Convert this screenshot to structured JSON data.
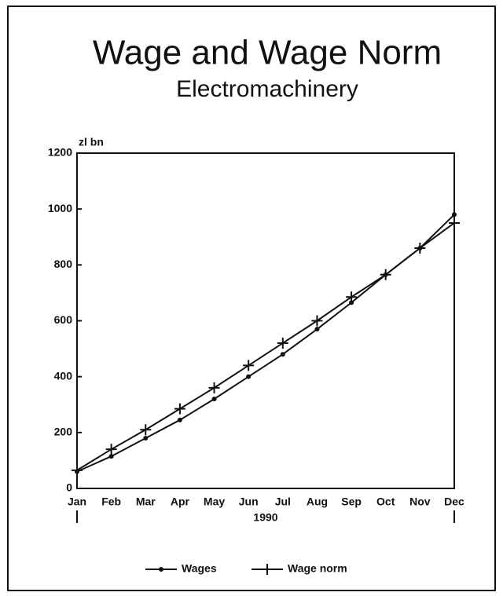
{
  "chart_data": {
    "type": "line",
    "title": "Wage and Wage Norm",
    "subtitle": "Electromachinery",
    "y_label": "zl bn",
    "x_label": "1990",
    "categories": [
      "Jan",
      "Feb",
      "Mar",
      "Apr",
      "May",
      "Jun",
      "Jul",
      "Aug",
      "Sep",
      "Oct",
      "Nov",
      "Dec"
    ],
    "series": [
      {
        "name": "Wages",
        "color": "#111111",
        "marker": "dot",
        "values": [
          60,
          115,
          180,
          245,
          320,
          400,
          480,
          570,
          665,
          765,
          860,
          980
        ]
      },
      {
        "name": "Wage norm",
        "color": "#111111",
        "marker": "plus",
        "values": [
          65,
          140,
          210,
          285,
          360,
          440,
          520,
          600,
          685,
          765,
          860,
          950
        ]
      }
    ],
    "ylim": [
      0,
      1200
    ],
    "yticks": [
      0,
      200,
      400,
      600,
      800,
      1000,
      1200
    ],
    "grid": false
  }
}
